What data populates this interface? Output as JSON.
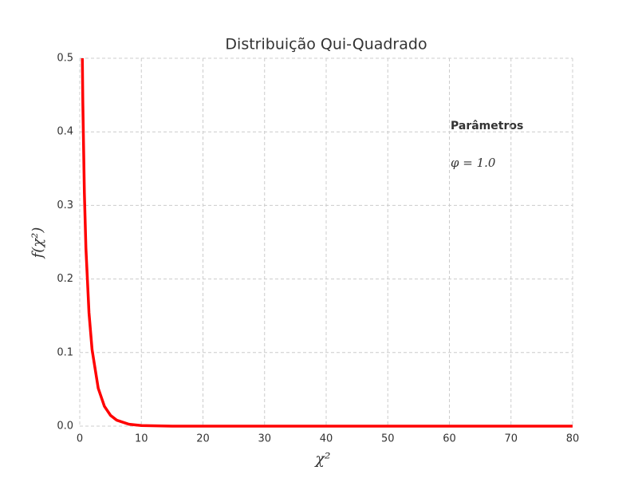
{
  "chart_data": {
    "type": "line",
    "title": "Distribuição Qui-Quadrado",
    "xlabel": "χ²",
    "ylabel": "f(χ²)",
    "annotations": [
      "Parâmetros",
      "φ = 1.0"
    ],
    "x": [
      0.4,
      0.5,
      0.75,
      1,
      1.5,
      2,
      3,
      4,
      5,
      6,
      8,
      10,
      15,
      20,
      40,
      60,
      80
    ],
    "series": [
      {
        "name": "f(χ²)",
        "color": "#ff0000",
        "values": [
          0.516,
          0.439,
          0.317,
          0.242,
          0.154,
          0.104,
          0.0514,
          0.027,
          0.0146,
          0.0081,
          0.0026,
          0.00085,
          5e-05,
          0,
          0,
          0,
          0
        ]
      }
    ],
    "xlim": [
      0,
      80
    ],
    "ylim": [
      0,
      0.5
    ],
    "xticks": [
      0,
      10,
      20,
      30,
      40,
      50,
      60,
      70,
      80
    ],
    "yticks": [
      {
        "value": 0,
        "label": "0.0"
      },
      0.1,
      0.2,
      0.3,
      0.4,
      0.5
    ],
    "grid": true
  }
}
